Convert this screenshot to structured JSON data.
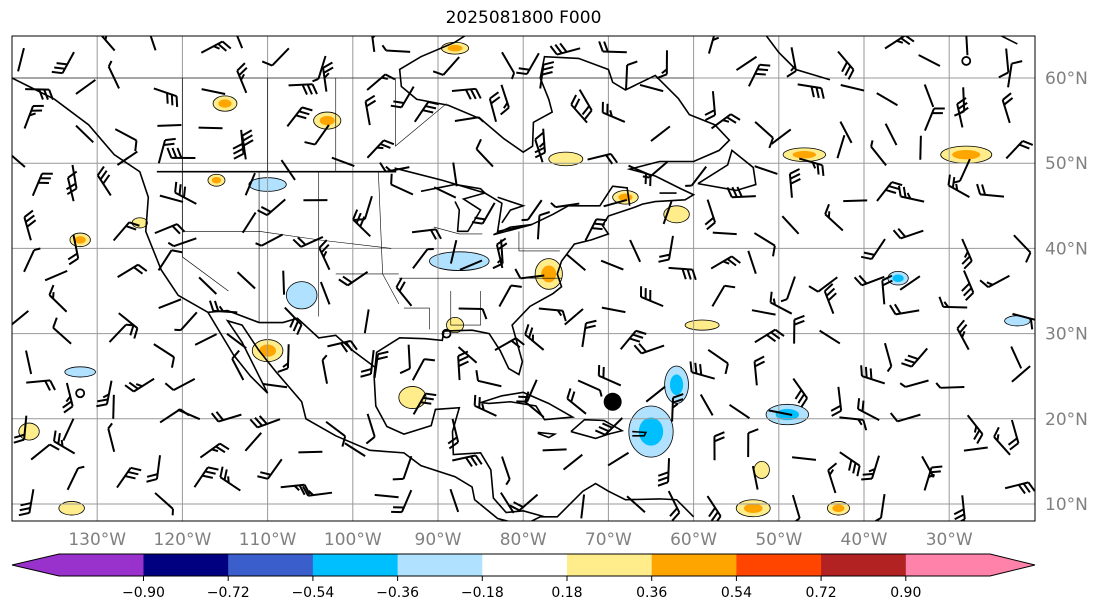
{
  "title": "2025081800 F000",
  "map": {
    "extent": {
      "lon": [
        -140,
        -20
      ],
      "lat": [
        8,
        65
      ]
    },
    "lon_labels": [
      {
        "lon": -130,
        "text": "130°W"
      },
      {
        "lon": -120,
        "text": "120°W"
      },
      {
        "lon": -110,
        "text": "110°W"
      },
      {
        "lon": -100,
        "text": "100°W"
      },
      {
        "lon": -90,
        "text": "90°W"
      },
      {
        "lon": -80,
        "text": "80°W"
      },
      {
        "lon": -70,
        "text": "70°W"
      },
      {
        "lon": -60,
        "text": "60°W"
      },
      {
        "lon": -50,
        "text": "50°W"
      },
      {
        "lon": -40,
        "text": "40°W"
      },
      {
        "lon": -30,
        "text": "30°W"
      }
    ],
    "lat_labels": [
      {
        "lat": 60,
        "text": "60°N"
      },
      {
        "lat": 50,
        "text": "50°N"
      },
      {
        "lat": 40,
        "text": "40°N"
      },
      {
        "lat": 30,
        "text": "30°N"
      },
      {
        "lat": 20,
        "text": "20°N"
      },
      {
        "lat": 10,
        "text": "10°N"
      }
    ],
    "shaded_regions": [
      {
        "lon": -93,
        "lat": 22.5,
        "rx": 1.6,
        "ry": 1.3,
        "value": 0.3
      },
      {
        "lon": -110,
        "lat": 28,
        "rx": 1.8,
        "ry": 1.3,
        "value": 0.45
      },
      {
        "lon": -115,
        "lat": 57,
        "rx": 1.4,
        "ry": 0.9,
        "value": 0.45
      },
      {
        "lon": -103,
        "lat": 55,
        "rx": 1.6,
        "ry": 1.0,
        "value": 0.45
      },
      {
        "lon": -116,
        "lat": 48,
        "rx": 1.0,
        "ry": 0.7,
        "value": 0.45
      },
      {
        "lon": -88,
        "lat": 63.5,
        "rx": 1.6,
        "ry": 0.7,
        "value": 0.45
      },
      {
        "lon": -75,
        "lat": 50.5,
        "rx": 2.0,
        "ry": 0.8,
        "value": 0.3
      },
      {
        "lon": -77,
        "lat": 37,
        "rx": 1.6,
        "ry": 1.8,
        "value": 0.45
      },
      {
        "lon": -68,
        "lat": 46,
        "rx": 1.5,
        "ry": 0.8,
        "value": 0.45
      },
      {
        "lon": -62,
        "lat": 44,
        "rx": 1.5,
        "ry": 1.0,
        "value": 0.3
      },
      {
        "lon": -28,
        "lat": 51,
        "rx": 3.0,
        "ry": 1.0,
        "value": 0.45
      },
      {
        "lon": -47,
        "lat": 51,
        "rx": 2.5,
        "ry": 0.8,
        "value": 0.45
      },
      {
        "lon": -132,
        "lat": 41,
        "rx": 1.2,
        "ry": 0.8,
        "value": 0.45
      },
      {
        "lon": -125,
        "lat": 43,
        "rx": 0.9,
        "ry": 0.6,
        "value": 0.3
      },
      {
        "lon": -88,
        "lat": 31,
        "rx": 1.0,
        "ry": 0.9,
        "value": 0.3
      },
      {
        "lon": -53,
        "lat": 9.5,
        "rx": 2.0,
        "ry": 1.0,
        "value": 0.45
      },
      {
        "lon": -43,
        "lat": 9.5,
        "rx": 1.3,
        "ry": 0.8,
        "value": 0.45
      },
      {
        "lon": -133,
        "lat": 9.5,
        "rx": 1.5,
        "ry": 0.8,
        "value": 0.3
      },
      {
        "lon": -52,
        "lat": 14,
        "rx": 0.9,
        "ry": 1.0,
        "value": 0.3
      },
      {
        "lon": -59,
        "lat": 31,
        "rx": 2.0,
        "ry": 0.6,
        "value": 0.3
      },
      {
        "lon": -138,
        "lat": 18.5,
        "rx": 1.2,
        "ry": 1.0,
        "value": 0.3
      },
      {
        "lon": -65,
        "lat": 18.5,
        "rx": 2.6,
        "ry": 3.0,
        "value": -0.45
      },
      {
        "lon": -62,
        "lat": 24,
        "rx": 1.4,
        "ry": 2.2,
        "value": -0.4
      },
      {
        "lon": -49,
        "lat": 20.5,
        "rx": 2.5,
        "ry": 1.2,
        "value": -0.4
      },
      {
        "lon": -87.5,
        "lat": 38.5,
        "rx": 3.5,
        "ry": 1.1,
        "value": -0.3
      },
      {
        "lon": -106,
        "lat": 34.5,
        "rx": 1.8,
        "ry": 1.6,
        "value": -0.3
      },
      {
        "lon": -36,
        "lat": 36.5,
        "rx": 1.2,
        "ry": 0.8,
        "value": -0.4
      },
      {
        "lon": -110,
        "lat": 47.5,
        "rx": 2.2,
        "ry": 0.8,
        "value": -0.3
      },
      {
        "lon": -132,
        "lat": 25.5,
        "rx": 1.8,
        "ry": 0.6,
        "value": -0.3
      },
      {
        "lon": -22,
        "lat": 31.5,
        "rx": 1.5,
        "ry": 0.6,
        "value": -0.3
      }
    ],
    "markers": [
      {
        "lon": -69.5,
        "lat": 22,
        "type": "filled"
      },
      {
        "lon": -132,
        "lat": 23,
        "type": "open"
      },
      {
        "lon": -89,
        "lat": 30,
        "type": "open"
      },
      {
        "lon": -28,
        "lat": 62,
        "type": "open"
      }
    ]
  },
  "colorbar": {
    "colors": [
      "#9932cc",
      "#000080",
      "#3a5fcd",
      "#00bfff",
      "#b0e2ff",
      "#ffffff",
      "#ffec8b",
      "#ffa500",
      "#ff4500",
      "#b22222",
      "#ff82ab"
    ],
    "ticks": [
      "−0.90",
      "−0.72",
      "−0.54",
      "−0.36",
      "−0.18",
      "0.18",
      "0.36",
      "0.54",
      "0.72",
      "0.90"
    ]
  }
}
